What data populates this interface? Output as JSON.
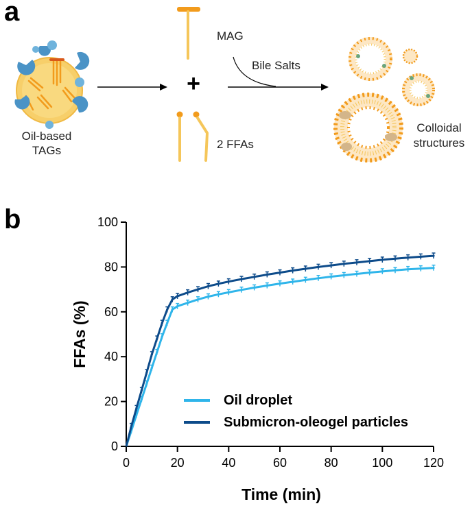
{
  "panel_a": {
    "letter": "a",
    "oil_label_1": "Oil-based",
    "oil_label_2": "TAGs",
    "mag_label": "MAG",
    "ffa_label": "2 FFAs",
    "bile_label": "Bile Salts",
    "colloid_label_1": "Colloidal",
    "colloid_label_2": "structures",
    "plus": "+",
    "colors": {
      "yellow": "#f5c65a",
      "orange": "#f29b1c",
      "blue": "#4a93c6",
      "light_blue": "#6fb3dc"
    }
  },
  "panel_b": {
    "letter": "b"
  },
  "chart_data": {
    "type": "line",
    "title": "",
    "xlabel": "Time (min)",
    "ylabel": "FFAs (%)",
    "xlim": [
      0,
      120
    ],
    "ylim": [
      0,
      100
    ],
    "xticks": [
      "0",
      "20",
      "40",
      "60",
      "80",
      "100",
      "120"
    ],
    "yticks": [
      "0",
      "20",
      "40",
      "60",
      "80",
      "100"
    ],
    "grid": false,
    "legend_position": "bottom-right",
    "series": [
      {
        "name": "Oil droplet",
        "color": "#2fb5ea",
        "x": [
          0,
          2,
          4,
          6,
          8,
          10,
          12,
          14,
          16,
          18,
          20,
          24,
          28,
          32,
          36,
          40,
          45,
          50,
          55,
          60,
          65,
          70,
          75,
          80,
          85,
          90,
          95,
          100,
          105,
          110,
          115,
          120
        ],
        "y": [
          0,
          7,
          14,
          21,
          28,
          35,
          42,
          49,
          55,
          61,
          62.5,
          64,
          65.5,
          66.8,
          67.8,
          68.7,
          69.8,
          70.8,
          71.7,
          72.6,
          73.4,
          74.2,
          75,
          75.7,
          76.3,
          76.9,
          77.5,
          78,
          78.5,
          79,
          79.3,
          79.6
        ]
      },
      {
        "name": "Submicron-oleogel particles",
        "color": "#0d4b8a",
        "x": [
          0,
          2,
          4,
          6,
          8,
          10,
          12,
          14,
          16,
          18,
          20,
          24,
          28,
          32,
          36,
          40,
          45,
          50,
          55,
          60,
          65,
          70,
          75,
          80,
          85,
          90,
          95,
          100,
          105,
          110,
          115,
          120
        ],
        "y": [
          0,
          9,
          17,
          25,
          33,
          41,
          48,
          55,
          61,
          65.5,
          67,
          68.6,
          70,
          71.4,
          72.5,
          73.5,
          74.6,
          75.6,
          76.6,
          77.5,
          78.4,
          79.2,
          80,
          80.7,
          81.4,
          82,
          82.6,
          83.2,
          83.7,
          84.2,
          84.6,
          85
        ]
      }
    ]
  }
}
